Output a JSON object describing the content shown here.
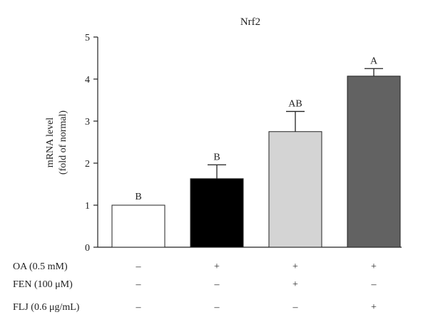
{
  "chart_data": {
    "type": "bar",
    "title": "Nrf2",
    "ylabel": [
      "mRNA level",
      "(fold of normal)"
    ],
    "xlabel": "",
    "ylim": [
      0,
      5
    ],
    "yticks": [
      "0",
      "1",
      "2",
      "3",
      "4",
      "5"
    ],
    "grid": false,
    "bars": [
      {
        "value": 1.0,
        "error": 0.0,
        "letter": "B",
        "color": "#ffffff"
      },
      {
        "value": 1.63,
        "error": 0.33,
        "letter": "B",
        "color": "#000000"
      },
      {
        "value": 2.75,
        "error": 0.48,
        "letter": "AB",
        "color": "#d4d4d4"
      },
      {
        "value": 4.07,
        "error": 0.18,
        "letter": "A",
        "color": "#626262"
      }
    ],
    "treatments": [
      {
        "label": "OA (0.5 mM)",
        "signs": [
          "–",
          "+",
          "+",
          "+"
        ]
      },
      {
        "label": "FEN (100 μM)",
        "signs": [
          "–",
          "–",
          "+",
          "–"
        ]
      },
      {
        "label": "FLJ (0.6 μg/mL)",
        "signs": [
          "–",
          "–",
          "–",
          "+"
        ]
      }
    ]
  }
}
